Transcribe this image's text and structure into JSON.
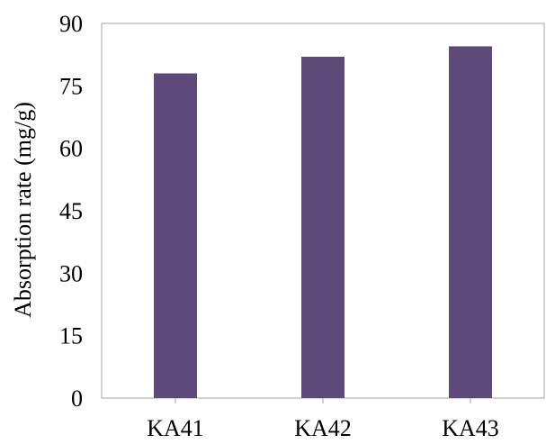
{
  "chart_data": {
    "type": "bar",
    "title": "",
    "xlabel": "",
    "ylabel": "Absorption rate (mg/g)",
    "categories": [
      "KA41",
      "KA42",
      "KA43"
    ],
    "values": [
      78,
      82,
      84.5
    ],
    "ylim": [
      0,
      90
    ],
    "yticks": [
      "0",
      "15",
      "30",
      "45",
      "60",
      "75",
      "90"
    ],
    "grid": false,
    "legend": "none",
    "bar_color": "#5e4a7a",
    "axis_color": "#a6a6a6"
  }
}
